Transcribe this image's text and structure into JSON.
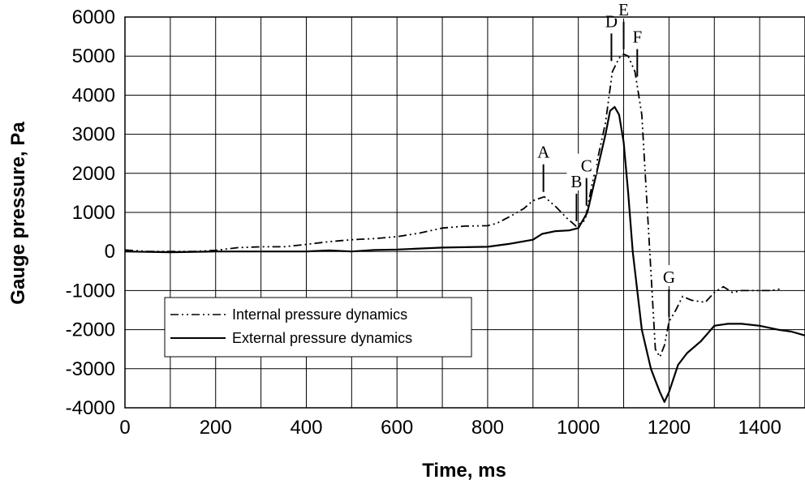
{
  "chart_data": {
    "type": "line",
    "xlabel": "Time, ms",
    "ylabel": "Gauge pressure, Pa",
    "xlim": [
      0,
      1500
    ],
    "ylim": [
      -4000,
      6000
    ],
    "xticks": [
      0,
      200,
      400,
      600,
      800,
      1000,
      1200,
      1400
    ],
    "yticks": [
      -4000,
      -3000,
      -2000,
      -1000,
      0,
      1000,
      2000,
      3000,
      4000,
      5000,
      6000
    ],
    "x_gridlines_every": 100,
    "y_gridlines_every": 1000,
    "grid": true,
    "legend_position": "lower-left",
    "series": [
      {
        "name": "Internal pressure dynamics",
        "style": "dash-dot-dot",
        "points": [
          [
            0,
            40
          ],
          [
            50,
            0
          ],
          [
            100,
            0
          ],
          [
            150,
            0
          ],
          [
            200,
            30
          ],
          [
            250,
            100
          ],
          [
            300,
            120
          ],
          [
            350,
            120
          ],
          [
            400,
            180
          ],
          [
            450,
            250
          ],
          [
            500,
            300
          ],
          [
            550,
            330
          ],
          [
            600,
            380
          ],
          [
            650,
            470
          ],
          [
            700,
            600
          ],
          [
            750,
            650
          ],
          [
            800,
            660
          ],
          [
            820,
            720
          ],
          [
            850,
            900
          ],
          [
            880,
            1100
          ],
          [
            900,
            1300
          ],
          [
            925,
            1400
          ],
          [
            950,
            1150
          ],
          [
            975,
            850
          ],
          [
            995,
            650
          ],
          [
            1015,
            800
          ],
          [
            1030,
            1700
          ],
          [
            1045,
            2500
          ],
          [
            1060,
            3300
          ],
          [
            1075,
            4600
          ],
          [
            1090,
            4950
          ],
          [
            1100,
            5050
          ],
          [
            1110,
            5000
          ],
          [
            1125,
            4600
          ],
          [
            1140,
            3500
          ],
          [
            1150,
            1500
          ],
          [
            1160,
            -500
          ],
          [
            1170,
            -2500
          ],
          [
            1180,
            -2700
          ],
          [
            1190,
            -2400
          ],
          [
            1200,
            -1800
          ],
          [
            1215,
            -1500
          ],
          [
            1230,
            -1150
          ],
          [
            1250,
            -1250
          ],
          [
            1280,
            -1300
          ],
          [
            1300,
            -1050
          ],
          [
            1320,
            -900
          ],
          [
            1340,
            -1050
          ],
          [
            1360,
            -1000
          ],
          [
            1400,
            -1000
          ],
          [
            1425,
            -1000
          ],
          [
            1450,
            -950
          ]
        ]
      },
      {
        "name": "External pressure dynamics",
        "style": "solid",
        "points": [
          [
            0,
            0
          ],
          [
            100,
            -20
          ],
          [
            200,
            0
          ],
          [
            300,
            0
          ],
          [
            400,
            0
          ],
          [
            450,
            30
          ],
          [
            500,
            0
          ],
          [
            550,
            40
          ],
          [
            600,
            50
          ],
          [
            700,
            100
          ],
          [
            800,
            120
          ],
          [
            850,
            200
          ],
          [
            900,
            300
          ],
          [
            920,
            450
          ],
          [
            950,
            520
          ],
          [
            980,
            540
          ],
          [
            1000,
            600
          ],
          [
            1020,
            1000
          ],
          [
            1040,
            2000
          ],
          [
            1060,
            3000
          ],
          [
            1070,
            3600
          ],
          [
            1080,
            3700
          ],
          [
            1090,
            3500
          ],
          [
            1100,
            2800
          ],
          [
            1110,
            1500
          ],
          [
            1120,
            0
          ],
          [
            1130,
            -1000
          ],
          [
            1140,
            -2000
          ],
          [
            1150,
            -2500
          ],
          [
            1160,
            -3000
          ],
          [
            1170,
            -3300
          ],
          [
            1180,
            -3600
          ],
          [
            1190,
            -3850
          ],
          [
            1200,
            -3600
          ],
          [
            1220,
            -2900
          ],
          [
            1240,
            -2600
          ],
          [
            1270,
            -2300
          ],
          [
            1300,
            -1900
          ],
          [
            1330,
            -1850
          ],
          [
            1360,
            -1850
          ],
          [
            1400,
            -1900
          ],
          [
            1440,
            -2000
          ],
          [
            1470,
            -2050
          ],
          [
            1500,
            -2150
          ]
        ]
      }
    ],
    "annotations": [
      {
        "label": "A",
        "x": 923,
        "y": 1400
      },
      {
        "label": "B",
        "x": 996,
        "y": 650
      },
      {
        "label": "C",
        "x": 1018,
        "y": 1050
      },
      {
        "label": "D",
        "x": 1073,
        "y": 4750
      },
      {
        "label": "E",
        "x": 1100,
        "y": 5050
      },
      {
        "label": "F",
        "x": 1130,
        "y": 4350
      },
      {
        "label": "G",
        "x": 1200,
        "y": -1800
      }
    ]
  },
  "legend": {
    "internal_label": "Internal pressure dynamics",
    "external_label": "External pressure dynamics"
  },
  "axes": {
    "xlabel": "Time, ms",
    "ylabel": "Gauge pressure, Pa"
  }
}
